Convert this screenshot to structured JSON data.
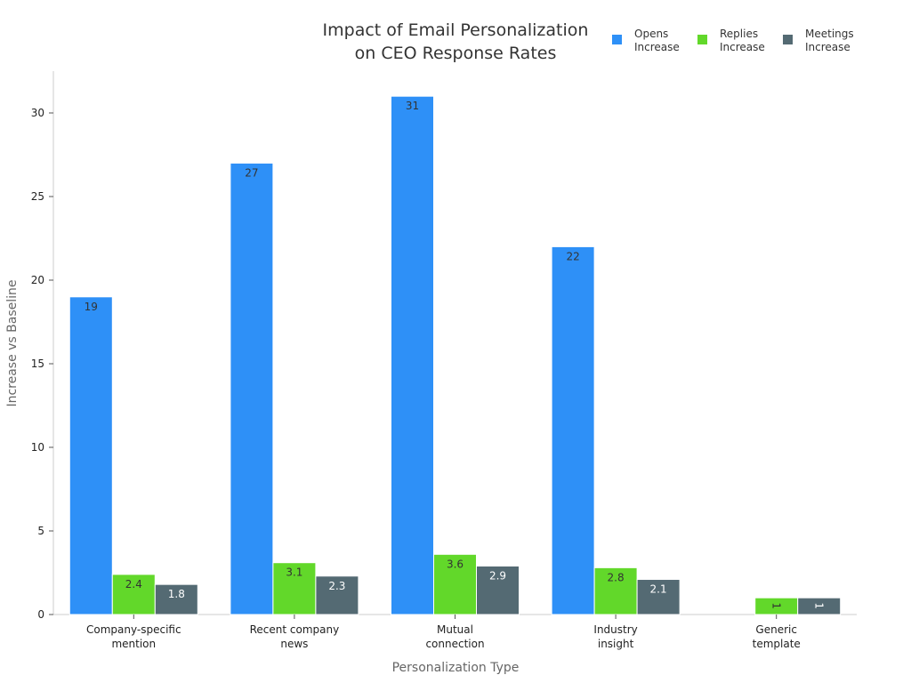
{
  "chart_data": {
    "type": "bar",
    "title": [
      "Impact of Email Personalization",
      "on CEO Response Rates"
    ],
    "xlabel": "Personalization Type",
    "ylabel": "Increase vs Baseline",
    "ylim": [
      0,
      32.5
    ],
    "yticks": [
      "0",
      "5",
      "10",
      "15",
      "20",
      "25",
      "30"
    ],
    "categories": [
      [
        "Company-specific",
        "mention"
      ],
      [
        "Recent company",
        "news"
      ],
      [
        "Mutual",
        "connection"
      ],
      [
        "Industry",
        "insight"
      ],
      [
        "Generic",
        "template"
      ]
    ],
    "series": [
      {
        "name": [
          "Opens",
          "Increase"
        ],
        "color": "#2E90F7",
        "label_color": "#333333",
        "values": [
          19,
          27,
          31,
          22,
          0
        ],
        "labels": [
          "19",
          "27",
          "31",
          "22",
          ""
        ]
      },
      {
        "name": [
          "Replies",
          "Increase"
        ],
        "color": "#62D82A",
        "label_color": "#333333",
        "values": [
          2.4,
          3.1,
          3.6,
          2.8,
          1
        ],
        "labels": [
          "2.4",
          "3.1",
          "3.6",
          "2.8",
          "1"
        ]
      },
      {
        "name": [
          "Meetings",
          "Increase"
        ],
        "color": "#546A73",
        "label_color": "#ffffff",
        "values": [
          1.8,
          2.3,
          2.9,
          2.1,
          1
        ],
        "labels": [
          "1.8",
          "2.3",
          "2.9",
          "2.1",
          "1"
        ]
      }
    ],
    "grid": false,
    "legend_position": "top-right"
  }
}
